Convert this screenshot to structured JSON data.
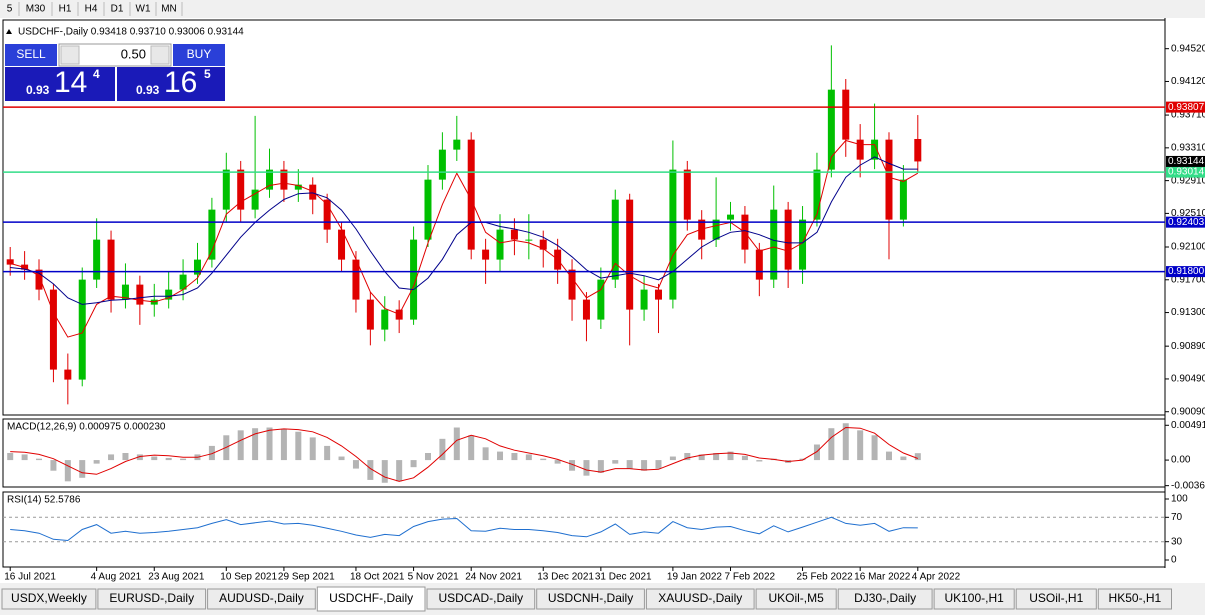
{
  "toolbar": [
    "5",
    "M30",
    "H1",
    "H4",
    "D1",
    "W1",
    "MN"
  ],
  "trade_panel": {
    "sell": "SELL",
    "buy": "BUY",
    "lot": "0.50",
    "sell_price": [
      "0.93",
      "14",
      "4"
    ],
    "buy_price": [
      "0.93",
      "16",
      "5"
    ]
  },
  "tabs": {
    "items": [
      "USDX,Weekly",
      "EURUSD-,Daily",
      "AUDUSD-,Daily",
      "USDCHF-,Daily",
      "USDCAD-,Daily",
      "USDCNH-,Daily",
      "XAUUSD-,Daily",
      "UKOil-,M5",
      "DJ30-,Daily",
      "UK100-,H1",
      "USOil-,H1",
      "HK50-,H1"
    ],
    "active": "USDCHF-,Daily"
  },
  "chart_data": [
    {
      "type": "candlestick",
      "title": "USDCHF-,Daily  0.93418 0.93710 0.93006 0.93144",
      "categories": [
        "16 Jul 2021",
        null,
        null,
        null,
        null,
        null,
        "4 Aug 2021",
        null,
        null,
        null,
        "23 Aug 2021",
        null,
        null,
        null,
        null,
        "10 Sep 2021",
        null,
        null,
        null,
        "29 Sep 2021",
        null,
        null,
        null,
        null,
        "18 Oct 2021",
        null,
        null,
        null,
        "5 Nov 2021",
        null,
        null,
        null,
        "24 Nov 2021",
        null,
        null,
        null,
        null,
        "13 Dec 2021",
        null,
        null,
        null,
        "31 Dec 2021",
        null,
        null,
        null,
        null,
        "19 Jan 2022",
        null,
        null,
        null,
        "7 Feb 2022",
        null,
        null,
        null,
        null,
        "25 Feb 2022",
        null,
        null,
        null,
        "16 Mar 2022",
        null,
        null,
        null,
        "4 Apr 2022"
      ],
      "open": [
        0.9195,
        0.91885,
        0.91824,
        0.9158,
        0.90604,
        0.90482,
        0.91702,
        0.9219,
        0.91458,
        0.91641,
        0.91397,
        0.91458,
        0.9158,
        0.91763,
        0.91946,
        0.92556,
        0.93044,
        0.92556,
        0.928,
        0.93044,
        0.928,
        0.92861,
        0.92678,
        0.92312,
        0.91946,
        0.91458,
        0.91092,
        0.91336,
        0.91214,
        0.9219,
        0.92922,
        0.93288,
        0.9341,
        0.92068,
        0.91946,
        0.92312,
        0.9219,
        0.9219,
        0.92068,
        0.91824,
        0.91458,
        0.91214,
        0.91702,
        0.92678,
        0.91336,
        0.9158,
        0.91458,
        0.93044,
        0.92434,
        0.9219,
        0.92434,
        0.92495,
        0.92068,
        0.91702,
        0.92556,
        0.91824,
        0.92434,
        0.93044,
        0.9402,
        0.9341,
        0.93166,
        0.9341,
        0.92434,
        0.93418
      ],
      "high": [
        0.921,
        0.9205,
        0.9195,
        0.9165,
        0.908,
        0.9185,
        0.9245,
        0.923,
        0.919,
        0.9175,
        0.9165,
        0.918,
        0.9195,
        0.9215,
        0.927,
        0.9325,
        0.9315,
        0.937,
        0.933,
        0.9315,
        0.9305,
        0.9295,
        0.9275,
        0.924,
        0.9205,
        0.9155,
        0.915,
        0.9145,
        0.9235,
        0.931,
        0.935,
        0.937,
        0.935,
        0.922,
        0.925,
        0.9245,
        0.925,
        0.923,
        0.922,
        0.9195,
        0.9155,
        0.9185,
        0.928,
        0.9275,
        0.9175,
        0.9165,
        0.934,
        0.9315,
        0.9255,
        0.9295,
        0.9265,
        0.926,
        0.9215,
        0.9285,
        0.9265,
        0.926,
        0.9325,
        0.9456,
        0.9415,
        0.936,
        0.9385,
        0.935,
        0.931,
        0.9371
      ],
      "low": [
        0.9175,
        0.917,
        0.9145,
        0.9045,
        0.9018,
        0.904,
        0.916,
        0.913,
        0.9135,
        0.9115,
        0.9125,
        0.9135,
        0.9145,
        0.9165,
        0.9185,
        0.924,
        0.924,
        0.9245,
        0.927,
        0.9265,
        0.9265,
        0.925,
        0.9215,
        0.918,
        0.913,
        0.909,
        0.9095,
        0.9105,
        0.9115,
        0.921,
        0.928,
        0.9315,
        0.9195,
        0.9165,
        0.918,
        0.92,
        0.9195,
        0.9185,
        0.9165,
        0.912,
        0.9095,
        0.911,
        0.916,
        0.909,
        0.912,
        0.9105,
        0.9135,
        0.923,
        0.9195,
        0.921,
        0.923,
        0.919,
        0.915,
        0.916,
        0.916,
        0.9165,
        0.9235,
        0.9295,
        0.932,
        0.9295,
        0.9305,
        0.9195,
        0.9235,
        0.93006
      ],
      "close": [
        0.91885,
        0.91824,
        0.9158,
        0.90604,
        0.90482,
        0.91702,
        0.9219,
        0.91458,
        0.91641,
        0.91397,
        0.91458,
        0.9158,
        0.91763,
        0.91946,
        0.92556,
        0.93044,
        0.92556,
        0.928,
        0.93044,
        0.928,
        0.92861,
        0.92678,
        0.92312,
        0.91946,
        0.91458,
        0.91092,
        0.91336,
        0.91214,
        0.9219,
        0.92922,
        0.93288,
        0.9341,
        0.92068,
        0.91946,
        0.92312,
        0.9219,
        0.9219,
        0.92068,
        0.91824,
        0.91458,
        0.91214,
        0.91702,
        0.92678,
        0.91336,
        0.9158,
        0.91458,
        0.93044,
        0.92434,
        0.9219,
        0.92434,
        0.92495,
        0.92068,
        0.91702,
        0.92556,
        0.91824,
        0.92434,
        0.93044,
        0.9402,
        0.9341,
        0.93166,
        0.9341,
        0.92434,
        0.92922,
        0.93144
      ],
      "up_color": "#00c000",
      "down_color": "#e00000",
      "lines": [
        {
          "color": "#e00000",
          "values": [
            0.919,
            0.9185,
            0.9175,
            0.913,
            0.91,
            0.9105,
            0.914,
            0.915,
            0.9148,
            0.9145,
            0.9143,
            0.9148,
            0.9158,
            0.9172,
            0.9205,
            0.925,
            0.9265,
            0.9275,
            0.9285,
            0.9288,
            0.9285,
            0.9278,
            0.9262,
            0.9232,
            0.9195,
            0.9155,
            0.9135,
            0.9128,
            0.9162,
            0.9215,
            0.9262,
            0.93,
            0.9268,
            0.9228,
            0.9215,
            0.9218,
            0.9215,
            0.9208,
            0.9195,
            0.9172,
            0.9148,
            0.9158,
            0.919,
            0.9175,
            0.9165,
            0.916,
            0.92,
            0.9225,
            0.9232,
            0.9236,
            0.924,
            0.9228,
            0.9205,
            0.921,
            0.9205,
            0.9215,
            0.925,
            0.932,
            0.934,
            0.9335,
            0.9335,
            0.9295,
            0.929,
            0.93
          ]
        },
        {
          "color": "#00008b",
          "values": [
            0.9185,
            0.9183,
            0.9178,
            0.9165,
            0.9148,
            0.914,
            0.9142,
            0.9145,
            0.9146,
            0.9148,
            0.915,
            0.915,
            0.9152,
            0.916,
            0.9178,
            0.92,
            0.9222,
            0.924,
            0.9255,
            0.9268,
            0.9275,
            0.9276,
            0.927,
            0.9255,
            0.9232,
            0.9205,
            0.918,
            0.916,
            0.9158,
            0.9172,
            0.9195,
            0.9225,
            0.924,
            0.924,
            0.9235,
            0.9232,
            0.9228,
            0.9222,
            0.9212,
            0.9198,
            0.9182,
            0.9172,
            0.9175,
            0.9178,
            0.9175,
            0.917,
            0.918,
            0.9195,
            0.921,
            0.922,
            0.9228,
            0.923,
            0.9225,
            0.9218,
            0.9215,
            0.9215,
            0.9228,
            0.9265,
            0.9295,
            0.931,
            0.932,
            0.9312,
            0.9305,
            0.9305
          ]
        }
      ],
      "levels": [
        {
          "value": 0.93807,
          "label": "0.93807",
          "color": "#e00000"
        },
        {
          "value": 0.93014,
          "label": "0.93014",
          "color": "#33dd88"
        },
        {
          "value": 0.92403,
          "label": "0.92403",
          "color": "#0000c8"
        },
        {
          "value": 0.918,
          "label": "0.91800",
          "color": "#0000c8"
        }
      ],
      "last_price": 0.93144,
      "ylim": [
        0.9005,
        0.9487
      ],
      "yticks": [
        {
          "value": 0.9452,
          "label": "0.94520"
        },
        {
          "value": 0.9412,
          "label": "0.94120"
        },
        {
          "value": 0.9371,
          "label": "0.93710"
        },
        {
          "value": 0.9331,
          "label": "0.93310"
        },
        {
          "value": 0.9291,
          "label": "0.92910"
        },
        {
          "value": 0.9251,
          "label": "0.92510"
        },
        {
          "value": 0.921,
          "label": "0.92100"
        },
        {
          "value": 0.917,
          "label": "0.91700"
        },
        {
          "value": 0.913,
          "label": "0.91300"
        },
        {
          "value": 0.9089,
          "label": "0.90890"
        },
        {
          "value": 0.9049,
          "label": "0.90490"
        },
        {
          "value": 0.9009,
          "label": "0.90090"
        }
      ]
    },
    {
      "type": "macd",
      "title": "MACD(12,26,9) 0.000975 0.000230",
      "histogram": {
        "color": "#b4b4b4",
        "values": [
          0.001,
          0.0008,
          0.0002,
          -0.0015,
          -0.003,
          -0.0025,
          -0.0005,
          0.0008,
          0.001,
          0.0008,
          0.0005,
          0.0003,
          0.0002,
          0.0008,
          0.002,
          0.0035,
          0.0042,
          0.0045,
          0.0046,
          0.0044,
          0.004,
          0.0032,
          0.002,
          0.0005,
          -0.0012,
          -0.0028,
          -0.0032,
          -0.003,
          -0.001,
          0.001,
          0.003,
          0.0046,
          0.0035,
          0.0018,
          0.0012,
          0.001,
          0.0008,
          0.0002,
          -0.0005,
          -0.0015,
          -0.0022,
          -0.0018,
          -0.0005,
          -0.0012,
          -0.0015,
          -0.0012,
          0.0005,
          0.001,
          0.0008,
          0.001,
          0.0012,
          0.0006,
          -0.0002,
          0.0002,
          -0.0004,
          0.0002,
          0.0022,
          0.0045,
          0.0052,
          0.0042,
          0.0035,
          0.0012,
          0.0005,
          0.000975
        ]
      },
      "signal": {
        "color": "#e00000",
        "values": [
          0.0012,
          0.0011,
          0.0008,
          0.0002,
          -0.0008,
          -0.0018,
          -0.002,
          -0.0012,
          -0.0002,
          0.0005,
          0.0007,
          0.0006,
          0.0004,
          0.0004,
          0.0009,
          0.0018,
          0.0028,
          0.0037,
          0.0042,
          0.0044,
          0.0043,
          0.004,
          0.0032,
          0.002,
          0.0005,
          -0.0012,
          -0.0024,
          -0.003,
          -0.0025,
          -0.001,
          0.0008,
          0.0028,
          0.0035,
          0.003,
          0.002,
          0.0014,
          0.001,
          0.0006,
          0.0001,
          -0.0006,
          -0.0014,
          -0.0017,
          -0.0012,
          -0.0012,
          -0.0014,
          -0.0013,
          -0.0005,
          0.0003,
          0.0007,
          0.0009,
          0.001,
          0.0008,
          0.0003,
          0.0001,
          -0.0002,
          0,
          0.0012,
          0.0032,
          0.0046,
          0.0045,
          0.0038,
          0.0022,
          0.001,
          0.00023
        ]
      },
      "ylim": [
        -0.0038,
        0.0058
      ],
      "yticks": [
        0.004913,
        {
          "value": 0,
          "label": "0.00"
        },
        -0.00361
      ]
    },
    {
      "type": "line",
      "title": "RSI(14) 52.5786",
      "color": "#1f6fcf",
      "values": [
        50,
        48,
        44,
        34,
        32,
        50,
        58,
        44,
        47,
        44,
        45,
        47,
        50,
        53,
        60,
        66,
        58,
        61,
        64,
        59,
        60,
        57,
        52,
        47,
        41,
        37,
        42,
        40,
        55,
        63,
        67,
        68,
        48,
        47,
        52,
        50,
        50,
        48,
        45,
        40,
        38,
        46,
        59,
        42,
        46,
        44,
        63,
        53,
        50,
        54,
        55,
        48,
        43,
        56,
        46,
        54,
        62,
        70,
        60,
        57,
        60,
        47,
        53,
        52.5786
      ],
      "levels": [
        70,
        30
      ],
      "ylim": [
        -11.5,
        111.5
      ],
      "yticks": [
        100,
        70,
        30,
        0
      ]
    }
  ]
}
